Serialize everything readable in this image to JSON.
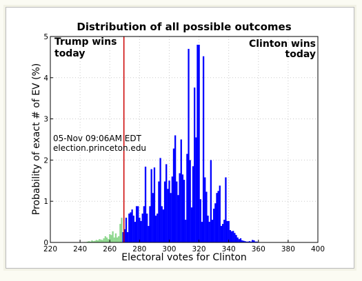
{
  "chart_data": {
    "type": "bar",
    "title": "Distribution of all possible outcomes",
    "xlabel": "Electoral votes for Clinton",
    "ylabel": "Probability of exact # of EV (%)",
    "xlim": [
      220,
      400
    ],
    "ylim": [
      0,
      5
    ],
    "xticks": [
      "220",
      "240",
      "260",
      "280",
      "300",
      "320",
      "340",
      "360",
      "380",
      "400"
    ],
    "yticks": [
      "0",
      "1",
      "2",
      "3",
      "4",
      "5"
    ],
    "threshold_ev": 269,
    "grid": true,
    "annotations": {
      "left_top": [
        "Trump wins",
        "today"
      ],
      "right_top": [
        "Clinton wins",
        "today"
      ],
      "timestamp": "05-Nov 09:06AM EDT",
      "source": "election.princeton.edu"
    },
    "colors": {
      "clinton": "#0000ff",
      "trump": "#90d890",
      "threshold": "#cc0000"
    },
    "series": [
      {
        "name": "",
        "x": [
          243,
          244,
          245,
          246,
          247,
          248,
          249,
          250,
          251,
          252,
          253,
          254,
          255,
          256,
          257,
          258,
          259,
          260,
          261,
          262,
          263,
          264,
          265,
          266,
          267,
          268,
          269,
          270,
          271,
          272,
          273,
          274,
          275,
          276,
          277,
          278,
          279,
          280,
          281,
          282,
          283,
          284,
          285,
          286,
          287,
          288,
          289,
          290,
          291,
          292,
          293,
          294,
          295,
          296,
          297,
          298,
          299,
          300,
          301,
          302,
          303,
          304,
          305,
          306,
          307,
          308,
          309,
          310,
          311,
          312,
          313,
          314,
          315,
          316,
          317,
          318,
          319,
          320,
          321,
          322,
          323,
          324,
          325,
          326,
          327,
          328,
          329,
          330,
          331,
          332,
          333,
          334,
          335,
          336,
          337,
          338,
          339,
          340,
          341,
          342,
          343,
          344,
          345,
          346,
          347,
          348,
          349,
          350,
          351,
          352,
          353,
          354,
          355,
          356,
          357,
          358,
          359,
          360
        ],
        "values": [
          0.01,
          0.01,
          0.02,
          0.03,
          0.02,
          0.05,
          0.03,
          0.04,
          0.06,
          0.05,
          0.08,
          0.07,
          0.06,
          0.1,
          0.15,
          0.12,
          0.08,
          0.2,
          0.18,
          0.27,
          0.12,
          0.22,
          0.12,
          0.15,
          0.45,
          0.6,
          0.25,
          0.32,
          0.6,
          0.25,
          0.7,
          0.73,
          0.8,
          0.65,
          0.5,
          0.88,
          0.88,
          0.6,
          0.52,
          0.7,
          0.88,
          1.84,
          0.7,
          0.4,
          0.88,
          1.78,
          1.2,
          1.82,
          0.65,
          0.7,
          1.48,
          2.05,
          0.88,
          0.8,
          1.48,
          1.9,
          1.3,
          1.5,
          1.2,
          1.6,
          2.28,
          2.6,
          1.48,
          1.15,
          1.68,
          2.5,
          1.65,
          1.52,
          0.55,
          2.15,
          4.7,
          2.0,
          0.85,
          1.85,
          3.76,
          2.55,
          4.8,
          4.8,
          1.05,
          0.5,
          4.52,
          1.58,
          1.23,
          0.65,
          0.5,
          2.0,
          0.55,
          0.82,
          0.95,
          1.2,
          1.25,
          1.38,
          0.4,
          0.45,
          0.55,
          1.58,
          0.52,
          0.52,
          0.3,
          0.27,
          0.28,
          0.23,
          0.18,
          0.12,
          0.08,
          0.1,
          0.05,
          0.04,
          0.03,
          0.02,
          0.02,
          0.03,
          0.02,
          0.06,
          0.05,
          0.02,
          0.02,
          0.01
        ]
      }
    ]
  }
}
